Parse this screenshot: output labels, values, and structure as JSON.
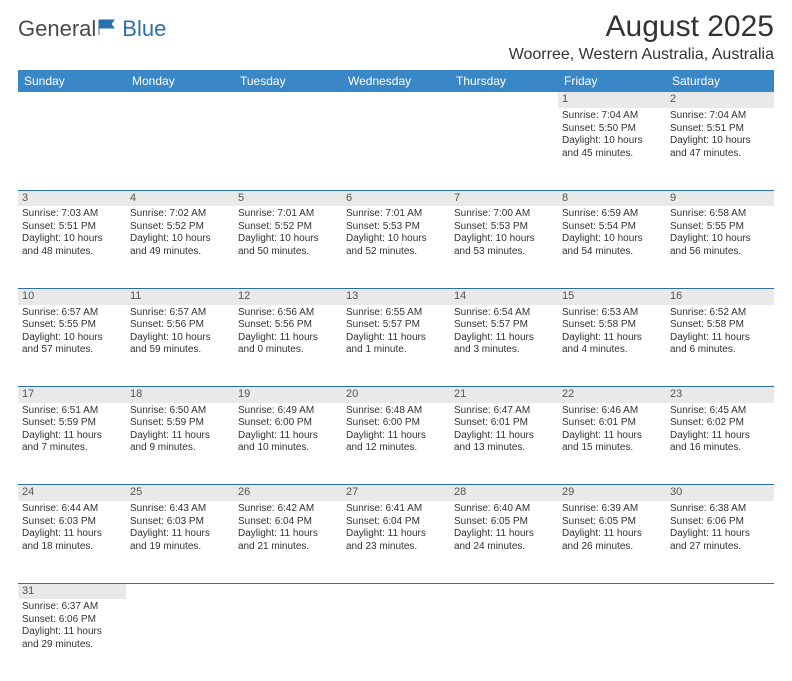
{
  "logo": {
    "text1": "General",
    "text2": "Blue"
  },
  "title": "August 2025",
  "location": "Woorree, Western Australia, Australia",
  "colors": {
    "header_bg": "#3a87c8",
    "daynum_bg": "#e9e9e9",
    "rule": "#2a6fb0"
  },
  "weekdays": [
    "Sunday",
    "Monday",
    "Tuesday",
    "Wednesday",
    "Thursday",
    "Friday",
    "Saturday"
  ],
  "weeks": [
    [
      null,
      null,
      null,
      null,
      null,
      {
        "n": "1",
        "sr": "Sunrise: 7:04 AM",
        "ss": "Sunset: 5:50 PM",
        "d1": "Daylight: 10 hours",
        "d2": "and 45 minutes."
      },
      {
        "n": "2",
        "sr": "Sunrise: 7:04 AM",
        "ss": "Sunset: 5:51 PM",
        "d1": "Daylight: 10 hours",
        "d2": "and 47 minutes."
      }
    ],
    [
      {
        "n": "3",
        "sr": "Sunrise: 7:03 AM",
        "ss": "Sunset: 5:51 PM",
        "d1": "Daylight: 10 hours",
        "d2": "and 48 minutes."
      },
      {
        "n": "4",
        "sr": "Sunrise: 7:02 AM",
        "ss": "Sunset: 5:52 PM",
        "d1": "Daylight: 10 hours",
        "d2": "and 49 minutes."
      },
      {
        "n": "5",
        "sr": "Sunrise: 7:01 AM",
        "ss": "Sunset: 5:52 PM",
        "d1": "Daylight: 10 hours",
        "d2": "and 50 minutes."
      },
      {
        "n": "6",
        "sr": "Sunrise: 7:01 AM",
        "ss": "Sunset: 5:53 PM",
        "d1": "Daylight: 10 hours",
        "d2": "and 52 minutes."
      },
      {
        "n": "7",
        "sr": "Sunrise: 7:00 AM",
        "ss": "Sunset: 5:53 PM",
        "d1": "Daylight: 10 hours",
        "d2": "and 53 minutes."
      },
      {
        "n": "8",
        "sr": "Sunrise: 6:59 AM",
        "ss": "Sunset: 5:54 PM",
        "d1": "Daylight: 10 hours",
        "d2": "and 54 minutes."
      },
      {
        "n": "9",
        "sr": "Sunrise: 6:58 AM",
        "ss": "Sunset: 5:55 PM",
        "d1": "Daylight: 10 hours",
        "d2": "and 56 minutes."
      }
    ],
    [
      {
        "n": "10",
        "sr": "Sunrise: 6:57 AM",
        "ss": "Sunset: 5:55 PM",
        "d1": "Daylight: 10 hours",
        "d2": "and 57 minutes."
      },
      {
        "n": "11",
        "sr": "Sunrise: 6:57 AM",
        "ss": "Sunset: 5:56 PM",
        "d1": "Daylight: 10 hours",
        "d2": "and 59 minutes."
      },
      {
        "n": "12",
        "sr": "Sunrise: 6:56 AM",
        "ss": "Sunset: 5:56 PM",
        "d1": "Daylight: 11 hours",
        "d2": "and 0 minutes."
      },
      {
        "n": "13",
        "sr": "Sunrise: 6:55 AM",
        "ss": "Sunset: 5:57 PM",
        "d1": "Daylight: 11 hours",
        "d2": "and 1 minute."
      },
      {
        "n": "14",
        "sr": "Sunrise: 6:54 AM",
        "ss": "Sunset: 5:57 PM",
        "d1": "Daylight: 11 hours",
        "d2": "and 3 minutes."
      },
      {
        "n": "15",
        "sr": "Sunrise: 6:53 AM",
        "ss": "Sunset: 5:58 PM",
        "d1": "Daylight: 11 hours",
        "d2": "and 4 minutes."
      },
      {
        "n": "16",
        "sr": "Sunrise: 6:52 AM",
        "ss": "Sunset: 5:58 PM",
        "d1": "Daylight: 11 hours",
        "d2": "and 6 minutes."
      }
    ],
    [
      {
        "n": "17",
        "sr": "Sunrise: 6:51 AM",
        "ss": "Sunset: 5:59 PM",
        "d1": "Daylight: 11 hours",
        "d2": "and 7 minutes."
      },
      {
        "n": "18",
        "sr": "Sunrise: 6:50 AM",
        "ss": "Sunset: 5:59 PM",
        "d1": "Daylight: 11 hours",
        "d2": "and 9 minutes."
      },
      {
        "n": "19",
        "sr": "Sunrise: 6:49 AM",
        "ss": "Sunset: 6:00 PM",
        "d1": "Daylight: 11 hours",
        "d2": "and 10 minutes."
      },
      {
        "n": "20",
        "sr": "Sunrise: 6:48 AM",
        "ss": "Sunset: 6:00 PM",
        "d1": "Daylight: 11 hours",
        "d2": "and 12 minutes."
      },
      {
        "n": "21",
        "sr": "Sunrise: 6:47 AM",
        "ss": "Sunset: 6:01 PM",
        "d1": "Daylight: 11 hours",
        "d2": "and 13 minutes."
      },
      {
        "n": "22",
        "sr": "Sunrise: 6:46 AM",
        "ss": "Sunset: 6:01 PM",
        "d1": "Daylight: 11 hours",
        "d2": "and 15 minutes."
      },
      {
        "n": "23",
        "sr": "Sunrise: 6:45 AM",
        "ss": "Sunset: 6:02 PM",
        "d1": "Daylight: 11 hours",
        "d2": "and 16 minutes."
      }
    ],
    [
      {
        "n": "24",
        "sr": "Sunrise: 6:44 AM",
        "ss": "Sunset: 6:03 PM",
        "d1": "Daylight: 11 hours",
        "d2": "and 18 minutes."
      },
      {
        "n": "25",
        "sr": "Sunrise: 6:43 AM",
        "ss": "Sunset: 6:03 PM",
        "d1": "Daylight: 11 hours",
        "d2": "and 19 minutes."
      },
      {
        "n": "26",
        "sr": "Sunrise: 6:42 AM",
        "ss": "Sunset: 6:04 PM",
        "d1": "Daylight: 11 hours",
        "d2": "and 21 minutes."
      },
      {
        "n": "27",
        "sr": "Sunrise: 6:41 AM",
        "ss": "Sunset: 6:04 PM",
        "d1": "Daylight: 11 hours",
        "d2": "and 23 minutes."
      },
      {
        "n": "28",
        "sr": "Sunrise: 6:40 AM",
        "ss": "Sunset: 6:05 PM",
        "d1": "Daylight: 11 hours",
        "d2": "and 24 minutes."
      },
      {
        "n": "29",
        "sr": "Sunrise: 6:39 AM",
        "ss": "Sunset: 6:05 PM",
        "d1": "Daylight: 11 hours",
        "d2": "and 26 minutes."
      },
      {
        "n": "30",
        "sr": "Sunrise: 6:38 AM",
        "ss": "Sunset: 6:06 PM",
        "d1": "Daylight: 11 hours",
        "d2": "and 27 minutes."
      }
    ],
    [
      {
        "n": "31",
        "sr": "Sunrise: 6:37 AM",
        "ss": "Sunset: 6:06 PM",
        "d1": "Daylight: 11 hours",
        "d2": "and 29 minutes."
      },
      null,
      null,
      null,
      null,
      null,
      null
    ]
  ]
}
